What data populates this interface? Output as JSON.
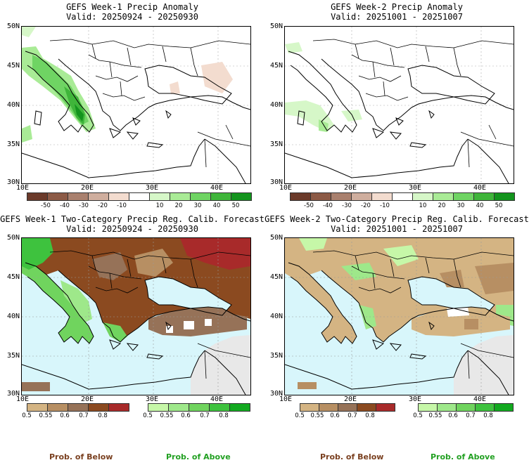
{
  "panels": [
    {
      "title": "GEFS Week-1 Precip Anomaly",
      "valid": "Valid: 20250924 - 20250930"
    },
    {
      "title": "GEFS Week-2 Precip Anomaly",
      "valid": "Valid: 20251001 - 20251007"
    },
    {
      "title": "GEFS Week-1 Two-Category Precip Reg. Calib. Forecast",
      "valid": "Valid: 20250924 - 20250930"
    },
    {
      "title": "GEFS Week-2 Two-Category Precip Reg. Calib. Forecast",
      "valid": "Valid: 20251001 - 20251007"
    }
  ],
  "axes": {
    "lat_labels": [
      "50N",
      "45N",
      "40N",
      "35N",
      "30N"
    ],
    "lon_labels": [
      "10E",
      "20E",
      "30E",
      "40E"
    ]
  },
  "anomaly_colorbar": {
    "labels": [
      "-50",
      "-40",
      "-30",
      "-20",
      "-10",
      "10",
      "20",
      "30",
      "40",
      "50"
    ],
    "colors": [
      "#6b3a2a",
      "#8c5a46",
      "#a9806e",
      "#cfae9e",
      "#f3dccf",
      "#ffffff",
      "#d6f7c8",
      "#a9eb96",
      "#6fd463",
      "#3fb53a",
      "#13941d"
    ]
  },
  "prob_colorbar": {
    "below_labels": [
      "0.5",
      "0.55",
      "0.6",
      "0.7",
      "0.8"
    ],
    "above_labels": [
      "0.5",
      "0.55",
      "0.6",
      "0.7",
      "0.8"
    ],
    "below_colors": [
      "#d4b483",
      "#b78f63",
      "#967258",
      "#8b4a20",
      "#a82a2a"
    ],
    "above_colors": [
      "#c6f7a8",
      "#9ee88a",
      "#70d45e",
      "#3ec23e",
      "#12a91f"
    ]
  },
  "footer": {
    "below_label": "Prob. of Below",
    "above_label": "Prob. of Above",
    "below_color": "#7a4020",
    "above_color": "#22a022"
  },
  "colors": {
    "sea": "#d8f6fb",
    "nodata": "#e8e8e8"
  }
}
